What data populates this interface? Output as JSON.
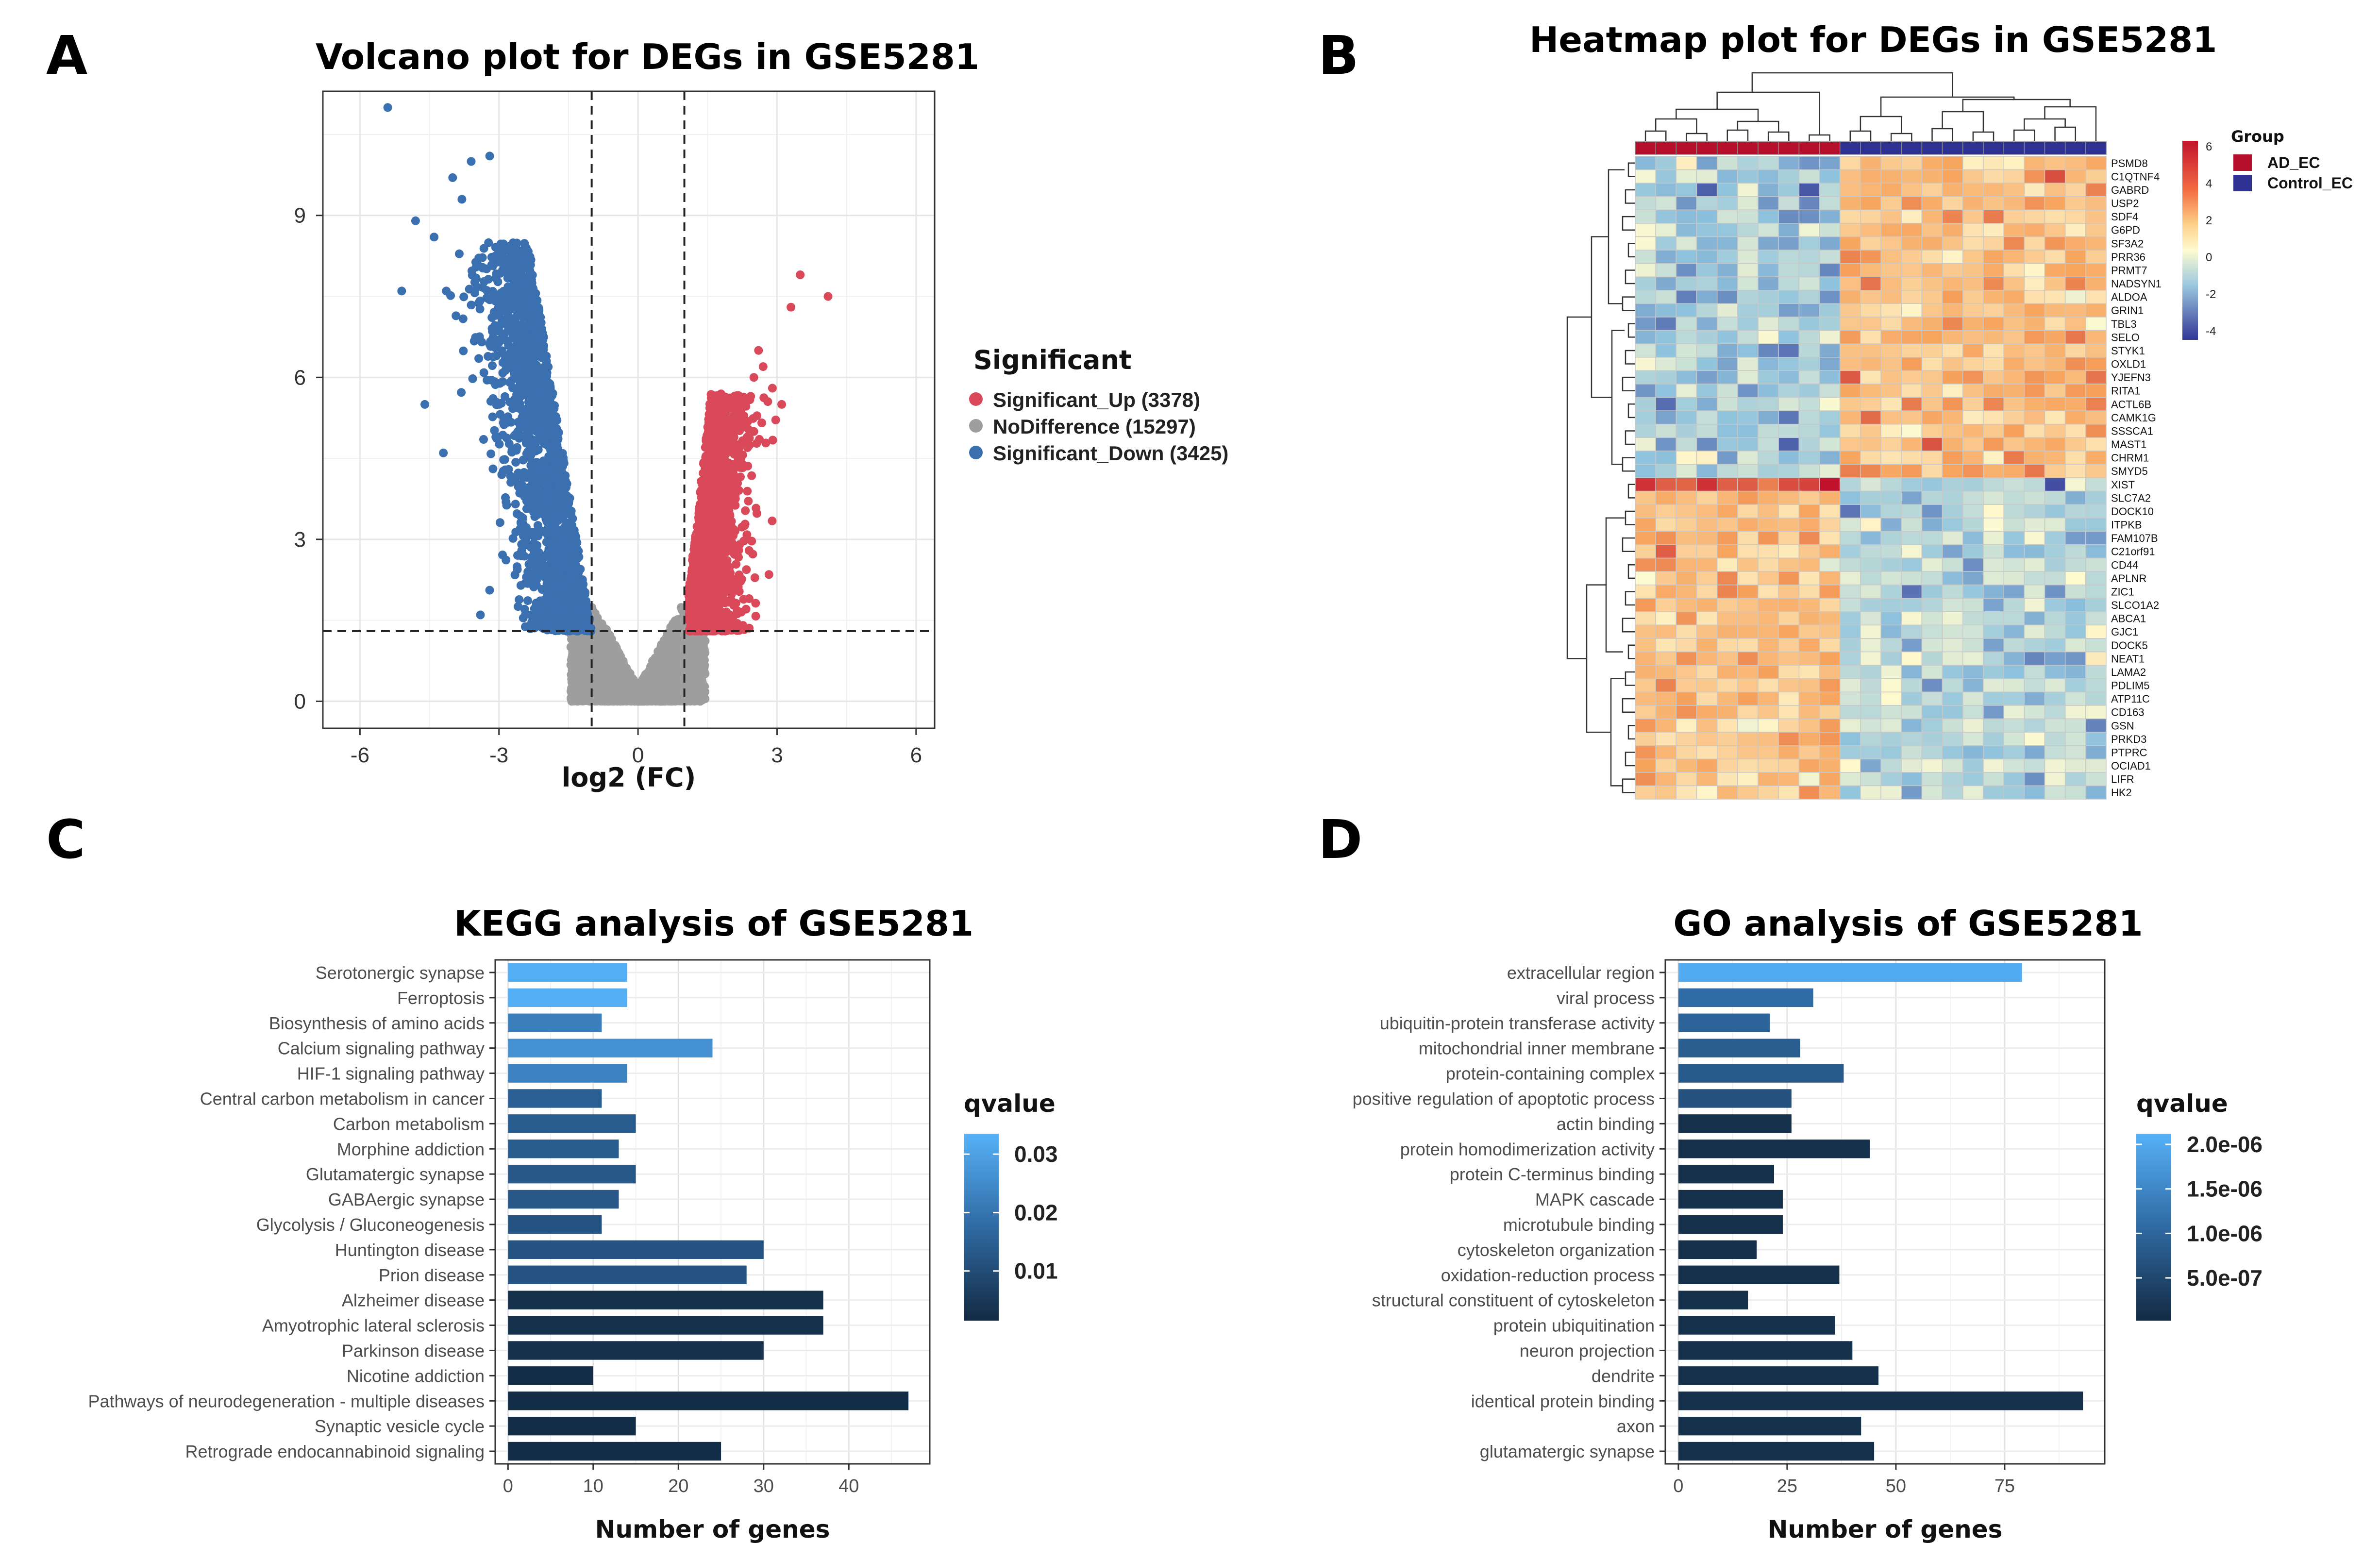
{
  "panels": {
    "a": "A",
    "b": "B",
    "c": "C",
    "d": "D"
  },
  "chart_data": [
    {
      "id": "volcano",
      "type": "scatter",
      "title": "Volcano plot for DEGs in GSE5281",
      "xlabel": "log2 (FC)",
      "ylabel": "",
      "xlim": [
        -6.8,
        6.4
      ],
      "ylim": [
        -0.5,
        11.3
      ],
      "xticks": [
        -6,
        -3,
        0,
        3,
        6
      ],
      "yticks": [
        0,
        3,
        6,
        9
      ],
      "xtick_labels": [
        "-6",
        "-3",
        "0",
        "3",
        "6"
      ],
      "ytick_labels": [
        "0",
        "3",
        "6",
        "9"
      ],
      "thresholds": {
        "log2fc": [
          -1,
          1
        ],
        "neg_log10_p": 1.3
      },
      "legend": {
        "title": "Significant",
        "entries": [
          {
            "label": "Significant_Up (3378)",
            "color": "#d9495a"
          },
          {
            "label": "NoDifference (15297)",
            "color": "#9e9e9e"
          },
          {
            "label": "Significant_Down (3425)",
            "color": "#3a6fb0"
          }
        ]
      },
      "series": [
        {
          "name": "Significant_Up",
          "count": 3378,
          "color": "#d9495a",
          "x_range": [
            1,
            4.2
          ],
          "y_range": [
            1.3,
            7.9
          ]
        },
        {
          "name": "NoDifference",
          "count": 15297,
          "color": "#9e9e9e",
          "x_range": [
            -1.5,
            1.5
          ],
          "y_range": [
            0,
            2.5
          ]
        },
        {
          "name": "Significant_Down",
          "count": 3425,
          "color": "#3a6fb0",
          "x_range": [
            -5.4,
            -1
          ],
          "y_range": [
            1.3,
            11
          ]
        }
      ]
    },
    {
      "id": "heatmap",
      "type": "heatmap",
      "title": "Heatmap plot for DEGs in GSE5281",
      "genes": [
        "PSMD8",
        "C1QTNF4",
        "GABRD",
        "USP2",
        "SDF4",
        "G6PD",
        "SF3A2",
        "PRR36",
        "PRMT7",
        "NADSYN1",
        "ALDOA",
        "GRIN1",
        "TBL3",
        "SELO",
        "STYK1",
        "OXLD1",
        "YJEFN3",
        "RITA1",
        "ACTL6B",
        "CAMK1G",
        "SSSCA1",
        "MAST1",
        "CHRM1",
        "SMYD5",
        "XIST",
        "SLC7A2",
        "DOCK10",
        "ITPKB",
        "FAM107B",
        "C21orf91",
        "CD44",
        "APLNR",
        "ZIC1",
        "SLCO1A2",
        "ABCA1",
        "GJC1",
        "DOCK5",
        "NEAT1",
        "LAMA2",
        "PDLIM5",
        "ATP11C",
        "CD163",
        "GSN",
        "PRKD3",
        "PTPRC",
        "OCIAD1",
        "LIFR",
        "HK2"
      ],
      "n_samples": 23,
      "n_ad": 10,
      "colorbar": {
        "ticks": [
          "6",
          "4",
          "2",
          "0",
          "-2",
          "-4"
        ],
        "low": "#313695",
        "mid": "#fffbd0",
        "high": "#c2122b"
      },
      "groups": {
        "title": "Group",
        "entries": [
          {
            "label": "AD_EC",
            "color": "#b50f2c"
          },
          {
            "label": "Control_EC",
            "color": "#2e3192"
          }
        ]
      }
    },
    {
      "id": "kegg",
      "type": "bar",
      "orientation": "horizontal",
      "title": "KEGG analysis of GSE5281",
      "xlabel": "Number of genes",
      "xlim": [
        -1.5,
        49.5
      ],
      "xticks": [
        0,
        10,
        20,
        30,
        40
      ],
      "xtick_labels": [
        "0",
        "10",
        "20",
        "30",
        "40"
      ],
      "categories": [
        "Serotonergic synapse",
        "Ferroptosis",
        "Biosynthesis of amino acids",
        "Calcium signaling pathway",
        "HIF-1 signaling pathway",
        "Central carbon metabolism in cancer",
        "Carbon metabolism",
        "Morphine addiction",
        "Glutamatergic synapse",
        "GABAergic synapse",
        "Glycolysis / Gluconeogenesis",
        "Huntington disease",
        "Prion disease",
        "Alzheimer disease",
        "Amyotrophic lateral sclerosis",
        "Parkinson disease",
        "Nicotine addiction",
        "Pathways of neurodegeneration - multiple diseases",
        "Synaptic vesicle cycle",
        "Retrograde endocannabinoid signaling"
      ],
      "values": [
        14,
        14,
        11,
        24,
        14,
        11,
        15,
        13,
        15,
        13,
        11,
        30,
        28,
        37,
        37,
        30,
        10,
        47,
        15,
        25
      ],
      "qvalues": [
        0.033,
        0.033,
        0.022,
        0.026,
        0.023,
        0.015,
        0.014,
        0.014,
        0.013,
        0.013,
        0.012,
        0.012,
        0.012,
        0.003,
        0.003,
        0.003,
        0.002,
        0.002,
        0.002,
        0.002
      ],
      "legend": {
        "title": "qvalue",
        "labels": [
          "0.03",
          "0.02",
          "0.01"
        ],
        "ticks": [
          0.03,
          0.02,
          0.01
        ],
        "range": [
          0.0015,
          0.0335
        ]
      }
    },
    {
      "id": "go",
      "type": "bar",
      "orientation": "horizontal",
      "title": "GO analysis of GSE5281",
      "xlabel": "Number of genes",
      "xlim": [
        -3,
        98
      ],
      "xticks": [
        0,
        25,
        50,
        75
      ],
      "xtick_labels": [
        "0",
        "25",
        "50",
        "75"
      ],
      "categories": [
        "extracellular region",
        "viral process",
        "ubiquitin-protein transferase activity",
        "mitochondrial inner membrane",
        "protein-containing complex",
        "positive regulation of apoptotic process",
        "actin binding",
        "protein homodimerization activity",
        "protein C-terminus binding",
        "MAPK cascade",
        "microtubule binding",
        "cytoskeleton organization",
        "oxidation-reduction process",
        "structural constituent of cytoskeleton",
        "protein ubiquitination",
        "neuron projection",
        "dendrite",
        "identical protein binding",
        "axon",
        "glutamatergic synapse"
      ],
      "values": [
        79,
        31,
        21,
        28,
        38,
        26,
        26,
        44,
        22,
        24,
        24,
        18,
        37,
        16,
        36,
        40,
        46,
        93,
        42,
        45
      ],
      "qvalues": [
        2.05e-06,
        1.08e-06,
        9.7e-07,
        8.7e-07,
        8.2e-07,
        6.5e-07,
        1e-07,
        1e-07,
        1e-07,
        1e-07,
        1e-07,
        1e-07,
        1e-07,
        1e-07,
        1e-07,
        1e-07,
        1e-07,
        1e-07,
        1e-07,
        1e-07
      ],
      "legend": {
        "title": "qvalue",
        "labels": [
          "2.0e-06",
          "1.5e-06",
          "1.0e-06",
          "5.0e-07"
        ],
        "ticks": [
          2e-06,
          1.5e-06,
          1e-06,
          5e-07
        ],
        "range": [
          2e-08,
          2.12e-06
        ]
      }
    }
  ]
}
